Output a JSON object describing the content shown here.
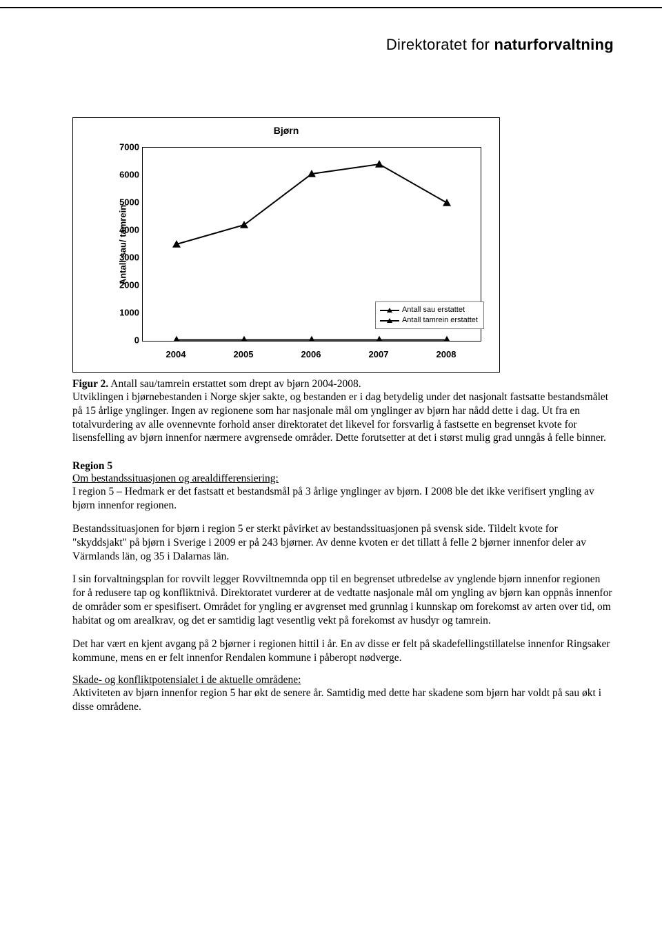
{
  "header": {
    "brand_light": "Direktoratet for ",
    "brand_bold": "naturforvaltning"
  },
  "chart": {
    "type": "line",
    "title": "Bjørn",
    "ylabel": "Antall sau/ tamrein",
    "ylim_min": 0,
    "ylim_max": 7000,
    "ytick_step": 1000,
    "yticks": [
      "0",
      "1000",
      "2000",
      "3000",
      "4000",
      "5000",
      "6000",
      "7000"
    ],
    "xcats": [
      "2004",
      "2005",
      "2006",
      "2007",
      "2008"
    ],
    "series": [
      {
        "name": "Antall sau erstattet",
        "values": [
          3500,
          4200,
          6050,
          6400,
          5000
        ],
        "color": "#000000",
        "marker": "triangle"
      },
      {
        "name": "Antall tamrein erstattet",
        "values": [
          30,
          30,
          30,
          30,
          30
        ],
        "color": "#000000",
        "marker": "triangle"
      }
    ],
    "line_color": "#000000",
    "line_width": 2,
    "marker_size": 12,
    "background_color": "#ffffff",
    "border_color": "#000000",
    "label_fontsize": 13
  },
  "caption": {
    "label": "Figur 2.",
    "text": " Antall sau/tamrein erstattet som drept av bjørn 2004-2008."
  },
  "intro_para": "Utviklingen i bjørnebestanden i Norge skjer sakte, og bestanden er i dag betydelig under det nasjonalt fastsatte bestandsmålet på 15 årlige ynglinger. Ingen av regionene som har nasjonale mål om ynglinger av bjørn har nådd dette i dag. Ut fra en totalvurdering av alle ovennevnte forhold anser direktoratet det likevel for forsvarlig å fastsette en begrenset kvote for lisensfelling av bjørn innenfor nærmere avgrensede områder. Dette forutsetter at det i størst mulig grad unngås å felle binner.",
  "region5": {
    "title": "Region 5",
    "sub1": "Om bestandssituasjonen og arealdifferensiering:",
    "p1": "I region 5 – Hedmark er det fastsatt et bestandsmål på 3 årlige ynglinger av bjørn. I 2008 ble det ikke verifisert yngling av bjørn innenfor regionen.",
    "p2": "Bestandssituasjonen for bjørn i region 5 er sterkt påvirket av bestandssituasjonen på svensk side. Tildelt kvote for \"skyddsjakt\" på bjørn i Sverige i 2009 er på 243 bjørner. Av denne kvoten er det tillatt å felle 2 bjørner innenfor deler av Värmlands län, og 35 i Dalarnas län.",
    "p3": "I sin forvaltningsplan for rovvilt legger Rovviltnemnda opp til en begrenset utbredelse av ynglende bjørn innenfor regionen for å redusere tap og konfliktnivå. Direktoratet vurderer at de vedtatte nasjonale mål om yngling av bjørn kan oppnås innenfor de områder som er spesifisert. Området for yngling er avgrenset med grunnlag i kunnskap om forekomst av arten over tid, om habitat og om arealkrav, og det er samtidig lagt vesentlig vekt på forekomst av husdyr og tamrein.",
    "p4": "Det har vært en kjent avgang på 2 bjørner i regionen hittil i år. En av disse er felt på skadefellingstillatelse innenfor Ringsaker kommune, mens en er felt innenfor Rendalen kommune i påberopt nødverge.",
    "sub2": "Skade- og konfliktpotensialet i de aktuelle områdene:",
    "p5": "Aktiviteten av bjørn innenfor region 5 har økt de senere år. Samtidig med dette har skadene som bjørn har voldt på sau økt i disse områdene."
  }
}
